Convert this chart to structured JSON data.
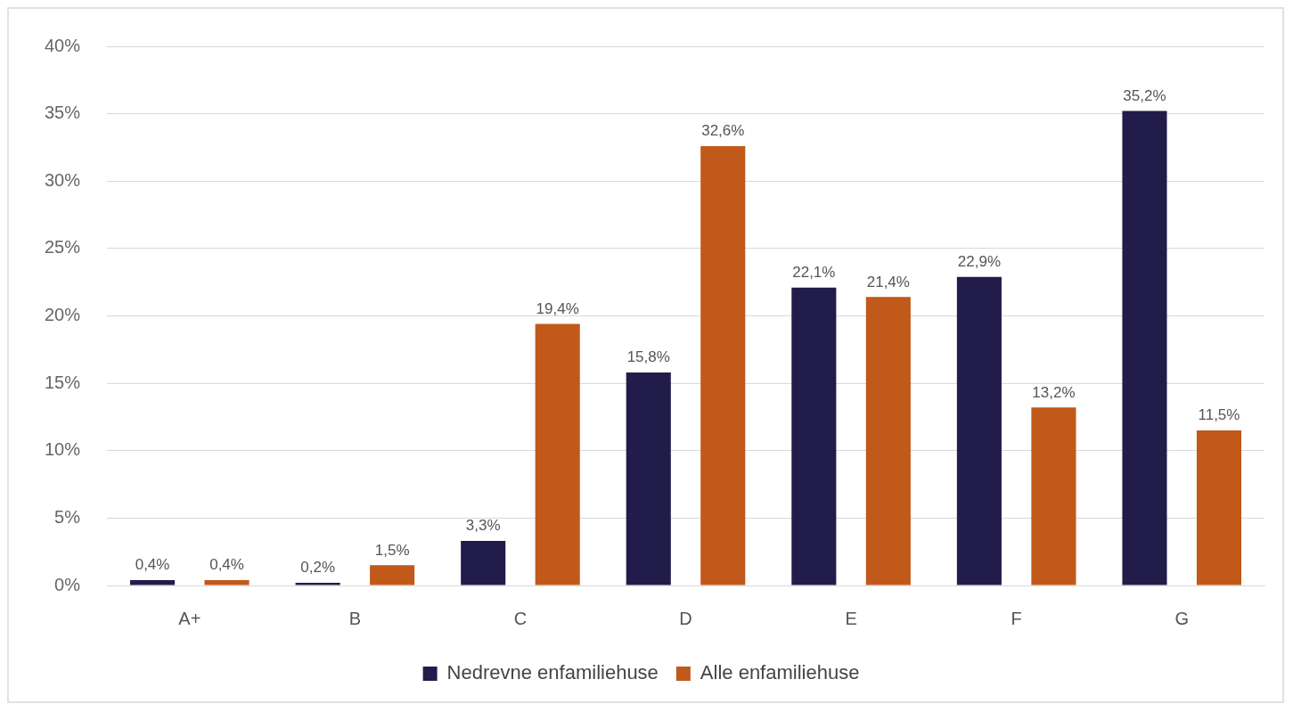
{
  "chart_data": {
    "type": "bar",
    "categories": [
      "A+",
      "B",
      "C",
      "D",
      "E",
      "F",
      "G"
    ],
    "series": [
      {
        "name": "Nedrevne enfamiliehuse",
        "color": "#221c4a",
        "values": [
          0.4,
          0.2,
          3.3,
          15.8,
          22.1,
          22.9,
          35.2
        ],
        "value_labels": [
          "0,4%",
          "0,2%",
          "3,3%",
          "15,8%",
          "22,1%",
          "22,9%",
          "35,2%"
        ]
      },
      {
        "name": "Alle enfamiliehuse",
        "color": "#c0591a",
        "values": [
          0.4,
          1.5,
          19.4,
          32.6,
          21.4,
          13.2,
          11.5
        ],
        "value_labels": [
          "0,4%",
          "1,5%",
          "19,4%",
          "32,6%",
          "21,4%",
          "13,2%",
          "11,5%"
        ]
      }
    ],
    "ylim": [
      0,
      40
    ],
    "yticks": [
      {
        "value": 0,
        "label": "0%"
      },
      {
        "value": 5,
        "label": "5%"
      },
      {
        "value": 10,
        "label": "10%"
      },
      {
        "value": 15,
        "label": "15%"
      },
      {
        "value": 20,
        "label": "20%"
      },
      {
        "value": 25,
        "label": "25%"
      },
      {
        "value": 30,
        "label": "30%"
      },
      {
        "value": 35,
        "label": "35%"
      },
      {
        "value": 40,
        "label": "40%"
      }
    ],
    "grid": "y",
    "legend": "bottom"
  }
}
